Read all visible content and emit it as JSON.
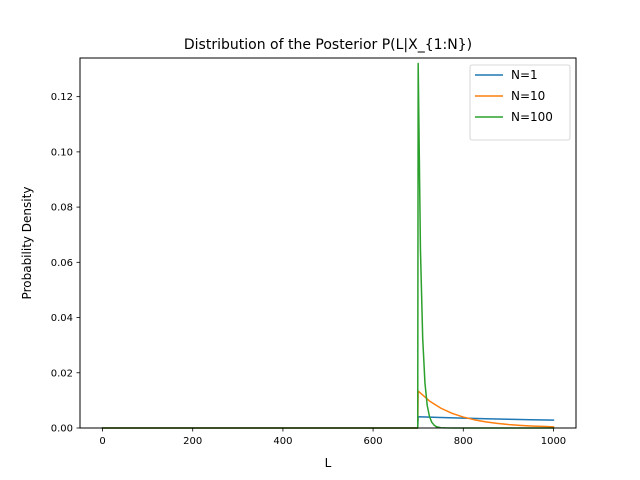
{
  "chart_data": {
    "type": "line",
    "title": "Distribution of the Posterior P(L|X_{1:N})",
    "xlabel": "L",
    "ylabel": "Probability Density",
    "xlim": [
      -50,
      1050
    ],
    "ylim": [
      0,
      0.134
    ],
    "xticks": [
      0,
      200,
      400,
      600,
      800,
      1000
    ],
    "xtick_labels": [
      "0",
      "200",
      "400",
      "600",
      "800",
      "1000"
    ],
    "yticks": [
      0.0,
      0.02,
      0.04,
      0.06,
      0.08,
      0.1,
      0.12
    ],
    "ytick_labels": [
      "0.00",
      "0.02",
      "0.04",
      "0.06",
      "0.08",
      "0.10",
      "0.12"
    ],
    "grid": false,
    "legend": "upper right",
    "series": [
      {
        "name": "N=1",
        "color": "#1f77b4",
        "x": [
          0,
          699,
          700,
          750,
          800,
          850,
          900,
          950,
          1000
        ],
        "y": [
          0,
          0,
          0.00409,
          0.00382,
          0.00358,
          0.00337,
          0.00318,
          0.00301,
          0.00286
        ]
      },
      {
        "name": "N=10",
        "color": "#ff7f0e",
        "x": [
          0,
          699,
          700,
          725,
          750,
          775,
          800,
          825,
          850,
          875,
          900,
          925,
          950,
          975,
          1000
        ],
        "y": [
          0,
          0,
          0.01338,
          0.00979,
          0.0072,
          0.00533,
          0.00396,
          0.00296,
          0.00222,
          0.00167,
          0.00127,
          0.00097,
          0.00074,
          0.00057,
          0.00044
        ]
      },
      {
        "name": "N=100",
        "color": "#2ca02c",
        "x": [
          0,
          699,
          700,
          705,
          710,
          715,
          720,
          725,
          730,
          735,
          740,
          745,
          750,
          760,
          780,
          800,
          1000
        ],
        "y": [
          0,
          0,
          0.132,
          0.0648,
          0.0326,
          0.0163,
          0.0082,
          0.0042,
          0.0021,
          0.0011,
          0.0005,
          0.0003,
          0.0001,
          3e-05,
          0,
          0,
          0
        ]
      }
    ]
  }
}
